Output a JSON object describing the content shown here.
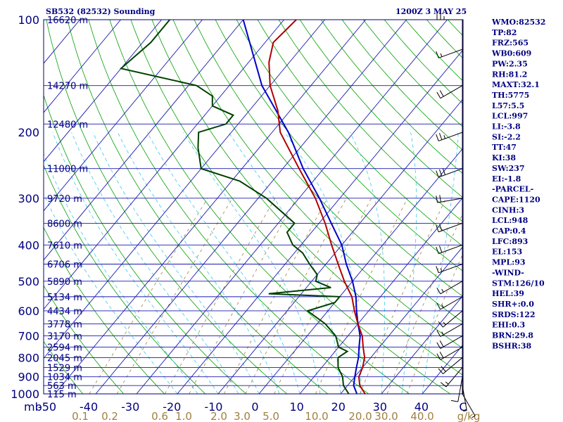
{
  "header": {
    "station": "SB532 (82532) Sounding",
    "time": "1200Z  3 MAY 25"
  },
  "colors": {
    "frame": "#000080",
    "isotherm": "#1a1ab0",
    "dry_adiabat": "#00a000",
    "moist_adiabat": "#3cc8f0",
    "mixing_ratio": "#a08040",
    "temperature": "#b00000",
    "dewpoint": "#004000",
    "parcel": "#0000c8",
    "wind": "#000000"
  },
  "chart_data": {
    "type": "skew-t",
    "pressure_levels": [
      100,
      200,
      300,
      400,
      500,
      600,
      700,
      800,
      900,
      1000
    ],
    "pressure_range": [
      100,
      1000
    ],
    "temperature_ticks": [
      "-50",
      "-40",
      "-30",
      "-20",
      "-10",
      "0",
      "10",
      "20",
      "30",
      "40",
      "C"
    ],
    "height_levels": [
      {
        "p": 100,
        "label": "16620 m"
      },
      {
        "p": 150,
        "label": "14270 m"
      },
      {
        "p": 190,
        "label": "12480 m"
      },
      {
        "p": 250,
        "label": "11000 m"
      },
      {
        "p": 300,
        "label": "9720 m"
      },
      {
        "p": 350,
        "label": "8600 m"
      },
      {
        "p": 400,
        "label": "7610 m"
      },
      {
        "p": 450,
        "label": "6706 m"
      },
      {
        "p": 500,
        "label": "5890 m"
      },
      {
        "p": 550,
        "label": "5134 m"
      },
      {
        "p": 600,
        "label": "4434 m"
      },
      {
        "p": 650,
        "label": "3778 m"
      },
      {
        "p": 700,
        "label": "3170 m"
      },
      {
        "p": 750,
        "label": "2594 m"
      },
      {
        "p": 800,
        "label": "2045 m"
      },
      {
        "p": 850,
        "label": "1529 m"
      },
      {
        "p": 900,
        "label": "1034 m"
      },
      {
        "p": 950,
        "label": "563 m"
      },
      {
        "p": 1000,
        "label": "115 m"
      }
    ],
    "mixing_ratio_labels": [
      "0.1",
      "0.2",
      "0.6",
      "1.0",
      "2.0",
      "3.0",
      "5.0",
      "10.0",
      "20.0",
      "30.0",
      "40.0",
      "g/kg"
    ],
    "temperature_profile": [
      [
        1000,
        26
      ],
      [
        950,
        23
      ],
      [
        925,
        22
      ],
      [
        900,
        21
      ],
      [
        850,
        20
      ],
      [
        800,
        18.5
      ],
      [
        750,
        16
      ],
      [
        700,
        13.5
      ],
      [
        650,
        10
      ],
      [
        600,
        6.5
      ],
      [
        550,
        3
      ],
      [
        500,
        -2
      ],
      [
        450,
        -7
      ],
      [
        400,
        -12.5
      ],
      [
        350,
        -18.5
      ],
      [
        300,
        -26
      ],
      [
        250,
        -36
      ],
      [
        200,
        -48
      ],
      [
        175,
        -53
      ],
      [
        150,
        -60
      ],
      [
        130,
        -65
      ],
      [
        115,
        -68
      ],
      [
        100,
        -67
      ]
    ],
    "dewpoint_profile": [
      [
        1000,
        22
      ],
      [
        950,
        19
      ],
      [
        900,
        17
      ],
      [
        850,
        14
      ],
      [
        800,
        12
      ],
      [
        770,
        13
      ],
      [
        750,
        10
      ],
      [
        700,
        7
      ],
      [
        650,
        2
      ],
      [
        600,
        -5
      ],
      [
        570,
        0
      ],
      [
        550,
        0
      ],
      [
        540,
        -18
      ],
      [
        520,
        -4
      ],
      [
        500,
        -9
      ],
      [
        480,
        -10
      ],
      [
        450,
        -14
      ],
      [
        420,
        -18
      ],
      [
        400,
        -22
      ],
      [
        370,
        -26
      ],
      [
        350,
        -26
      ],
      [
        300,
        -38
      ],
      [
        270,
        -48
      ],
      [
        250,
        -60
      ],
      [
        220,
        -65
      ],
      [
        200,
        -68
      ],
      [
        190,
        -63
      ],
      [
        180,
        -63
      ],
      [
        170,
        -70
      ],
      [
        160,
        -72
      ],
      [
        150,
        -78
      ],
      [
        135,
        -100
      ],
      [
        115,
        -98
      ],
      [
        100,
        -98
      ]
    ],
    "parcel_profile": [
      [
        1000,
        24
      ],
      [
        950,
        21.5
      ],
      [
        900,
        20
      ],
      [
        850,
        18.5
      ],
      [
        800,
        17
      ],
      [
        750,
        15
      ],
      [
        700,
        13
      ],
      [
        650,
        10
      ],
      [
        600,
        7
      ],
      [
        550,
        4
      ],
      [
        500,
        0
      ],
      [
        450,
        -5
      ],
      [
        400,
        -10
      ],
      [
        350,
        -17
      ],
      [
        300,
        -25
      ],
      [
        250,
        -35
      ],
      [
        200,
        -46
      ],
      [
        150,
        -62
      ],
      [
        100,
        -80
      ]
    ],
    "wind_barbs": [
      {
        "p": 100,
        "dir": 270,
        "spd": 25
      },
      {
        "p": 120,
        "dir": 250,
        "spd": 15
      },
      {
        "p": 150,
        "dir": 240,
        "spd": 20
      },
      {
        "p": 200,
        "dir": 250,
        "spd": 25
      },
      {
        "p": 250,
        "dir": 250,
        "spd": 30
      },
      {
        "p": 300,
        "dir": 260,
        "spd": 20
      },
      {
        "p": 350,
        "dir": 250,
        "spd": 20
      },
      {
        "p": 400,
        "dir": 250,
        "spd": 20
      },
      {
        "p": 450,
        "dir": 250,
        "spd": 15
      },
      {
        "p": 500,
        "dir": 240,
        "spd": 15
      },
      {
        "p": 550,
        "dir": 240,
        "spd": 15
      },
      {
        "p": 600,
        "dir": 230,
        "spd": 15
      },
      {
        "p": 650,
        "dir": 240,
        "spd": 15
      },
      {
        "p": 700,
        "dir": 240,
        "spd": 20
      },
      {
        "p": 750,
        "dir": 240,
        "spd": 20
      },
      {
        "p": 800,
        "dir": 230,
        "spd": 20
      },
      {
        "p": 850,
        "dir": 220,
        "spd": 15
      },
      {
        "p": 900,
        "dir": 190,
        "spd": 10
      },
      {
        "p": 950,
        "dir": 170,
        "spd": 5
      },
      {
        "p": 1000,
        "dir": 150,
        "spd": 5
      }
    ]
  },
  "indices": [
    "WMO:82532",
    "TP:82",
    "FRZ:565",
    "WB0:609",
    "PW:2.35",
    "RH:81.2",
    "MAXT:32.1",
    "TH:5775",
    "L57:5.5",
    "LCL:997",
    "LI:-3.8",
    "SI:-2.2",
    "TT:47",
    "KI:38",
    "SW:237",
    "EI:-1.8",
    "-PARCEL-",
    "CAPE:1120",
    "CINH:3",
    "LCL:948",
    "CAP:0.4",
    "LFC:893",
    "EL:153",
    "MPL:93",
    "-WIND-",
    "STM:126/10",
    "HEL:39",
    "SHR+:0.0",
    "SRDS:122",
    "EHI:0.3",
    "BRN:29.8",
    "BSHR:38"
  ],
  "corner_unit": "mb"
}
